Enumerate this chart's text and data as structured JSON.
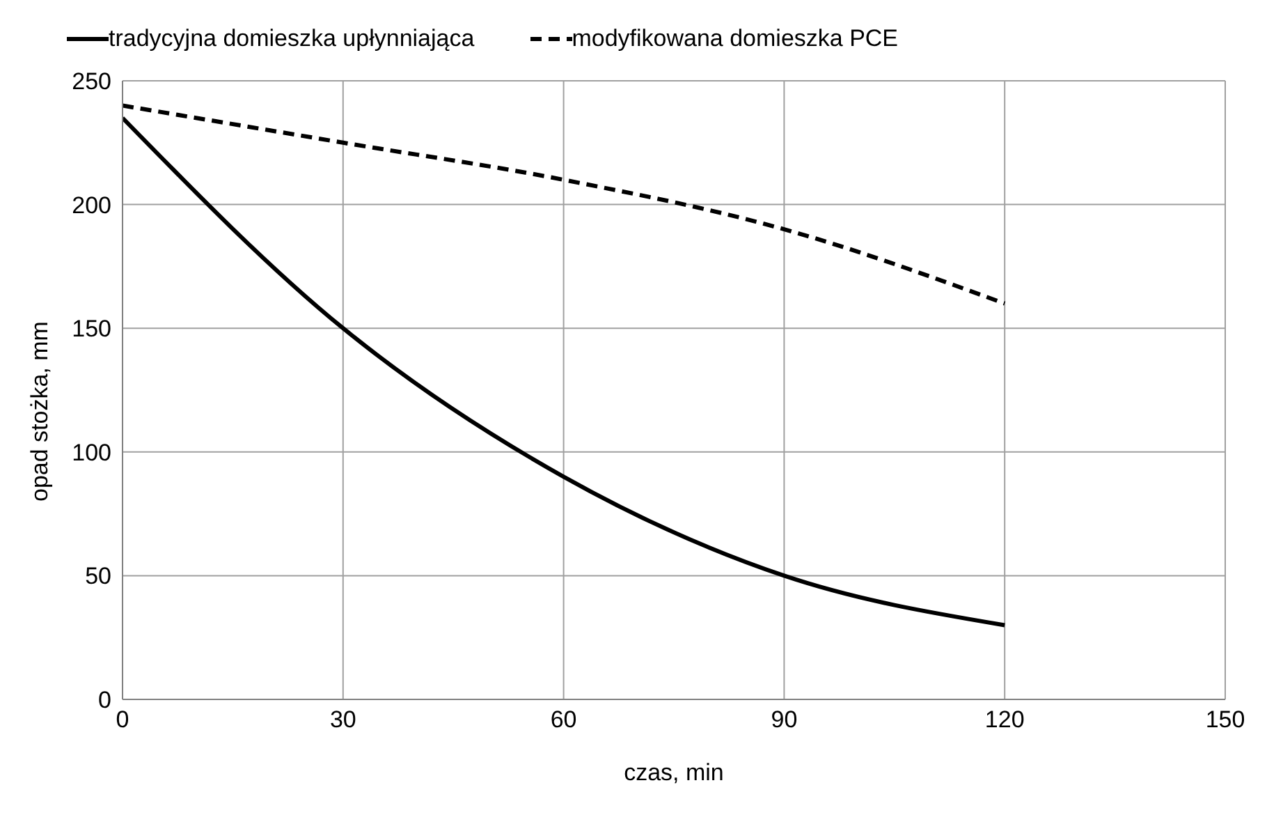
{
  "chart_data": {
    "type": "line",
    "xlabel": "czas, min",
    "ylabel": "opad stożka, mm",
    "x": [
      0,
      30,
      60,
      90,
      120
    ],
    "series": [
      {
        "name": "tradycyjna domieszka upłynniająca",
        "color": "#000000",
        "values": [
          235,
          150,
          90,
          50,
          30
        ],
        "line_style": "solid"
      },
      {
        "name": "modyfikowana domieszka PCE",
        "color": "#000000",
        "values": [
          240,
          225,
          210,
          190,
          160
        ],
        "line_style": "dashed"
      }
    ],
    "xlim": [
      0,
      150
    ],
    "xticks": [
      0,
      30,
      60,
      90,
      120,
      150
    ],
    "ylim": [
      0,
      250
    ],
    "yticks": [
      0,
      50,
      100,
      150,
      200,
      250
    ],
    "grid": true,
    "legend": "top",
    "marker": "none"
  }
}
